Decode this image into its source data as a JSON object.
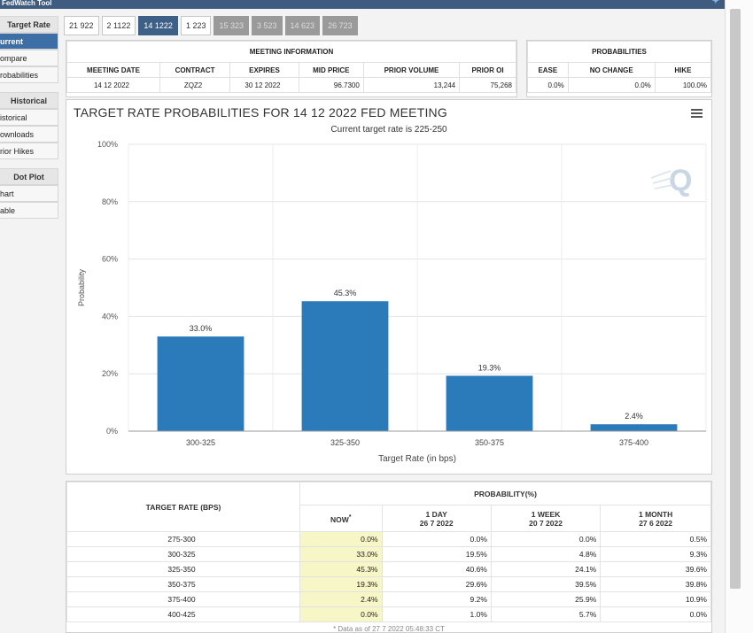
{
  "topbar": {
    "title": "FedWatch Tool"
  },
  "sidebar": {
    "items": [
      {
        "label": "Target Rate",
        "kind": "head"
      },
      {
        "label": "urrent",
        "kind": "active"
      },
      {
        "label": "ompare",
        "kind": "item"
      },
      {
        "label": "robabilities",
        "kind": "item"
      },
      {
        "label": "Historical",
        "kind": "head"
      },
      {
        "label": "istorical",
        "kind": "item"
      },
      {
        "label": "ownloads",
        "kind": "item"
      },
      {
        "label": "rior Hikes",
        "kind": "item"
      },
      {
        "label": "Dot Plot",
        "kind": "head"
      },
      {
        "label": "hart",
        "kind": "item"
      },
      {
        "label": "able",
        "kind": "item"
      }
    ]
  },
  "tabs": [
    {
      "label": "21 922",
      "state": "normal"
    },
    {
      "label": "2 1122",
      "state": "normal"
    },
    {
      "label": "14 1222",
      "state": "active"
    },
    {
      "label": "1 223",
      "state": "normal"
    },
    {
      "label": "15 323",
      "state": "dim"
    },
    {
      "label": "3 523",
      "state": "dim"
    },
    {
      "label": "14 623",
      "state": "dim"
    },
    {
      "label": "26 723",
      "state": "dim"
    }
  ],
  "meeting_info": {
    "title": "MEETING INFORMATION",
    "headers": [
      "MEETING DATE",
      "CONTRACT",
      "EXPIRES",
      "MID PRICE",
      "PRIOR VOLUME",
      "PRIOR OI"
    ],
    "values": [
      "14 12 2022",
      "ZQZ2",
      "30 12 2022",
      "96.7300",
      "13,244",
      "75,268"
    ]
  },
  "probabilities": {
    "title": "PROBABILITIES",
    "headers": [
      "EASE",
      "NO CHANGE",
      "HIKE"
    ],
    "values": [
      "0.0%",
      "0.0%",
      "100.0%"
    ]
  },
  "chart": {
    "title": "TARGET RATE PROBABILITIES FOR 14 12 2022 FED MEETING",
    "subtitle": "Current target rate is 225-250"
  },
  "chart_data": {
    "type": "bar",
    "categories": [
      "300-325",
      "325-350",
      "350-375",
      "375-400"
    ],
    "values": [
      33.0,
      45.3,
      19.3,
      2.4
    ],
    "labels": [
      "33.0%",
      "45.3%",
      "19.3%",
      "2.4%"
    ],
    "yticks": [
      "0%",
      "20%",
      "40%",
      "60%",
      "80%",
      "100%"
    ],
    "ylim": [
      0,
      100
    ],
    "xlabel": "Target Rate (in bps)",
    "ylabel": "Probability",
    "color": "#2b7bba"
  },
  "prob_table": {
    "col_rate": "TARGET RATE (BPS)",
    "group": "PROBABILITY(%)",
    "cols": [
      {
        "top": "NOW",
        "bottom": "",
        "sup": "*"
      },
      {
        "top": "1 DAY",
        "bottom": "26 7 2022",
        "sup": ""
      },
      {
        "top": "1 WEEK",
        "bottom": "20 7 2022",
        "sup": ""
      },
      {
        "top": "1 MONTH",
        "bottom": "27 6 2022",
        "sup": ""
      }
    ],
    "rows": [
      [
        "275-300",
        "0.0%",
        "0.0%",
        "0.0%",
        "0.5%"
      ],
      [
        "300-325",
        "33.0%",
        "19.5%",
        "4.8%",
        "9.3%"
      ],
      [
        "325-350",
        "45.3%",
        "40.6%",
        "24.1%",
        "39.6%"
      ],
      [
        "350-375",
        "19.3%",
        "29.6%",
        "39.5%",
        "39.8%"
      ],
      [
        "375-400",
        "2.4%",
        "9.2%",
        "25.9%",
        "10.9%"
      ],
      [
        "400-425",
        "0.0%",
        "1.0%",
        "5.7%",
        "0.0%"
      ]
    ],
    "footnote": "* Data as of 27 7 2022 05:48:33 CT"
  }
}
